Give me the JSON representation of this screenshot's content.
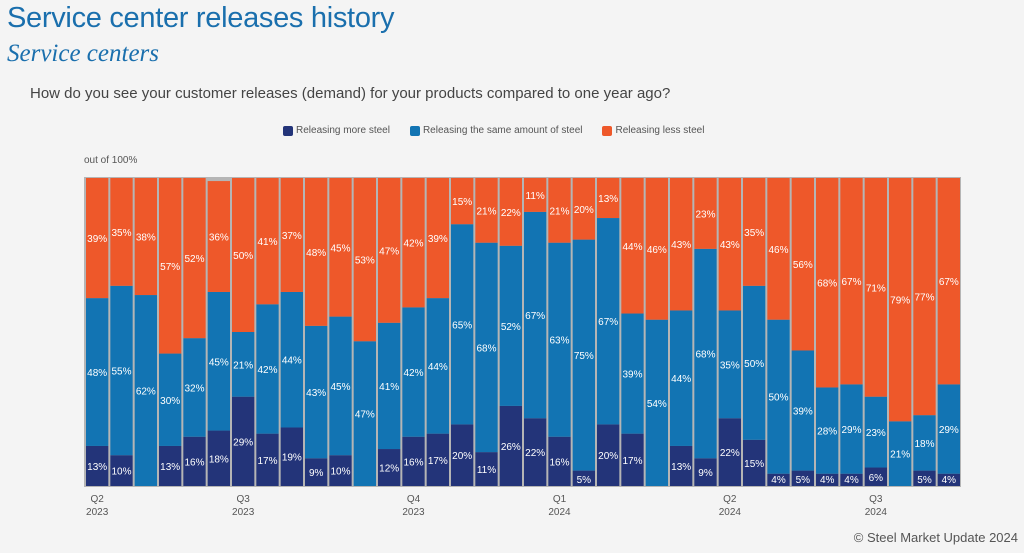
{
  "header": {
    "title": "Service center releases history",
    "subtitle": "Service centers",
    "question": "How do you see your customer releases (demand) for your products compared to one year ago?",
    "unit_label": "out of 100%"
  },
  "footer": {
    "copyright": "© Steel Market Update 2024"
  },
  "colors": {
    "more": "#233479",
    "same": "#1274b3",
    "less": "#ee582a"
  },
  "chart_data": {
    "type": "bar",
    "stacked": true,
    "title": "Service center releases history",
    "subtitle": "Service centers",
    "ylabel": "out of 100%",
    "ylim": [
      0,
      100
    ],
    "legend_position": "top",
    "legend": [
      "Releasing more steel",
      "Releasing the same amount of steel",
      "Releasing less steel"
    ],
    "x_tick_labels": [
      {
        "index": 0,
        "line1": "Q2",
        "line2": "2023"
      },
      {
        "index": 6,
        "line1": "Q3",
        "line2": "2023"
      },
      {
        "index": 13,
        "line1": "Q4",
        "line2": "2023"
      },
      {
        "index": 19,
        "line1": "Q1",
        "line2": "2024"
      },
      {
        "index": 26,
        "line1": "Q2",
        "line2": "2024"
      },
      {
        "index": 32,
        "line1": "Q3",
        "line2": "2024"
      }
    ],
    "series": [
      {
        "name": "Releasing more steel",
        "key": "more",
        "values": [
          13,
          10,
          0,
          13,
          16,
          18,
          29,
          17,
          19,
          9,
          10,
          0,
          12,
          16,
          17,
          20,
          11,
          26,
          22,
          16,
          5,
          20,
          17,
          0,
          13,
          9,
          22,
          15,
          4,
          5,
          4,
          4,
          6,
          0,
          5,
          4
        ]
      },
      {
        "name": "Releasing the same amount of steel",
        "key": "same",
        "values": [
          48,
          55,
          62,
          30,
          32,
          45,
          21,
          42,
          44,
          43,
          45,
          47,
          41,
          42,
          44,
          65,
          68,
          52,
          67,
          63,
          75,
          67,
          39,
          54,
          44,
          68,
          35,
          50,
          50,
          39,
          28,
          29,
          23,
          21,
          18,
          29
        ]
      },
      {
        "name": "Releasing less steel",
        "key": "less",
        "values": [
          39,
          35,
          38,
          57,
          52,
          36,
          50,
          41,
          37,
          48,
          45,
          53,
          47,
          42,
          39,
          15,
          21,
          22,
          11,
          21,
          20,
          13,
          44,
          46,
          43,
          23,
          43,
          35,
          46,
          56,
          68,
          67,
          71,
          79,
          77,
          67
        ]
      }
    ]
  }
}
